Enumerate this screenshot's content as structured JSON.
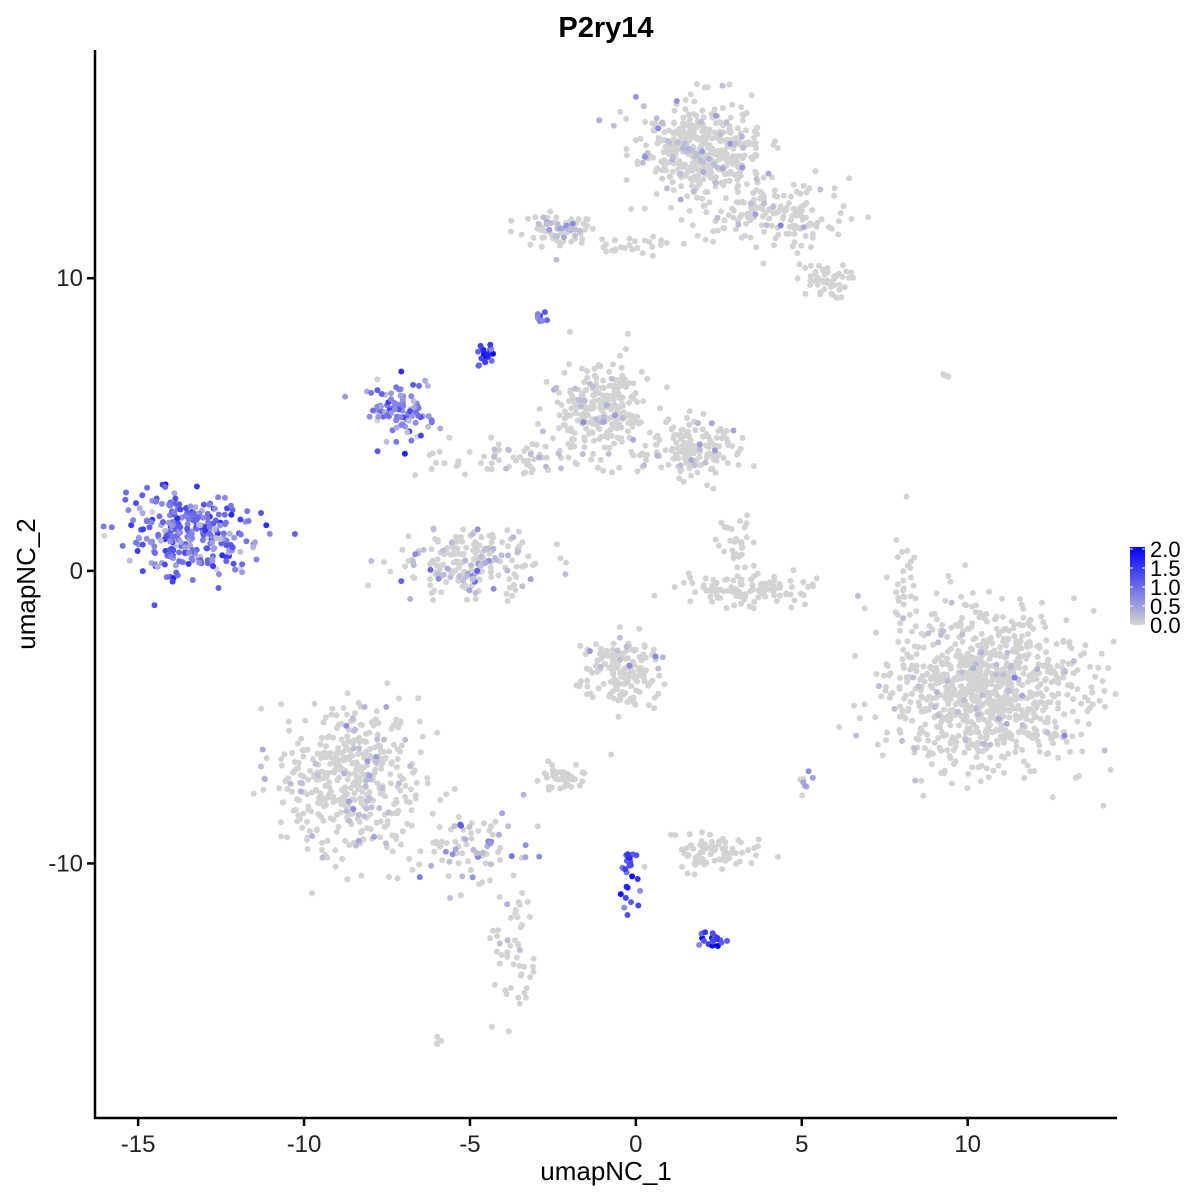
{
  "chart_data": {
    "type": "scatter",
    "title": "P2ry14",
    "xlabel": "umapNC_1",
    "ylabel": "umapNC_2",
    "xlim": [
      -16.3,
      14.5
    ],
    "ylim": [
      -18.7,
      17.8
    ],
    "x_ticks": [
      -15,
      -10,
      -5,
      0,
      5,
      10
    ],
    "x_tick_labels": [
      "-15",
      "-10",
      "-5",
      "0",
      "5",
      "10"
    ],
    "y_ticks": [
      -10,
      0,
      10
    ],
    "y_tick_labels": [
      "-10",
      "0",
      "10"
    ],
    "grid": false,
    "legend": {
      "position": "right",
      "color_low": "#D3D3D3",
      "color_high": "#0000FF",
      "range": [
        0,
        2.0
      ],
      "tick_labels": [
        "0.0",
        "0.5",
        "1.0",
        "1.5",
        "2.0"
      ],
      "tick_values": [
        0,
        0.5,
        1.0,
        1.5,
        2.0
      ]
    },
    "clusters": [
      {
        "center": [
          1.9,
          14.4
        ],
        "sd": [
          0.9,
          0.8
        ],
        "n": 420,
        "expr": 0.05
      },
      {
        "center": [
          4.2,
          12.2
        ],
        "sd": [
          1.1,
          0.6
        ],
        "n": 160,
        "expr": 0.03
      },
      {
        "center": [
          5.6,
          9.9
        ],
        "sd": [
          0.4,
          0.3
        ],
        "n": 50,
        "expr": 0.0
      },
      {
        "center": [
          -2.3,
          11.6
        ],
        "sd": [
          0.6,
          0.3
        ],
        "n": 70,
        "expr": 0.25
      },
      {
        "center": [
          0.0,
          11.1
        ],
        "sd": [
          0.7,
          0.15
        ],
        "n": 25,
        "expr": 0.0
      },
      {
        "center": [
          -2.8,
          8.7
        ],
        "sd": [
          0.15,
          0.1
        ],
        "n": 8,
        "expr": 0.8
      },
      {
        "center": [
          -4.5,
          7.4
        ],
        "sd": [
          0.15,
          0.2
        ],
        "n": 20,
        "expr": 1.3
      },
      {
        "center": [
          -7.1,
          5.5
        ],
        "sd": [
          0.5,
          0.5
        ],
        "n": 90,
        "expr": 0.8
      },
      {
        "center": [
          -1.1,
          5.5
        ],
        "sd": [
          0.7,
          0.8
        ],
        "n": 260,
        "expr": 0.02
      },
      {
        "center": [
          1.6,
          4.1
        ],
        "sd": [
          0.7,
          0.5
        ],
        "n": 160,
        "expr": 0.03
      },
      {
        "center": [
          -3.8,
          3.8
        ],
        "sd": [
          1.2,
          0.3
        ],
        "n": 60,
        "expr": 0.1
      },
      {
        "center": [
          -5.0,
          0.3
        ],
        "sd": [
          1.1,
          0.6
        ],
        "n": 210,
        "expr": 0.2
      },
      {
        "center": [
          -13.5,
          1.2
        ],
        "sd": [
          0.9,
          0.7
        ],
        "n": 260,
        "expr": 0.85
      },
      {
        "center": [
          -12.2,
          0.6
        ],
        "sd": [
          0.5,
          0.6
        ],
        "n": 25,
        "expr": 0.6
      },
      {
        "center": [
          3.4,
          -0.6
        ],
        "sd": [
          1.1,
          0.3
        ],
        "n": 110,
        "expr": 0.0
      },
      {
        "center": [
          3.1,
          0.9
        ],
        "sd": [
          0.3,
          0.5
        ],
        "n": 30,
        "expr": 0.0
      },
      {
        "center": [
          10.5,
          -4.1
        ],
        "sd": [
          1.4,
          1.3
        ],
        "n": 950,
        "expr": 0.02
      },
      {
        "center": [
          -0.4,
          -3.4
        ],
        "sd": [
          0.6,
          0.6
        ],
        "n": 160,
        "expr": 0.02
      },
      {
        "center": [
          -8.6,
          -7.1
        ],
        "sd": [
          1.1,
          1.3
        ],
        "n": 450,
        "expr": 0.02
      },
      {
        "center": [
          -5.4,
          -9.4
        ],
        "sd": [
          1.0,
          0.6
        ],
        "n": 90,
        "expr": 0.3
      },
      {
        "center": [
          -3.7,
          -13.0
        ],
        "sd": [
          0.3,
          1.5
        ],
        "n": 50,
        "expr": 0.05
      },
      {
        "center": [
          -2.3,
          -7.0
        ],
        "sd": [
          0.4,
          0.2
        ],
        "n": 40,
        "expr": 0.0
      },
      {
        "center": [
          2.3,
          -9.6
        ],
        "sd": [
          0.6,
          0.3
        ],
        "n": 80,
        "expr": 0.0
      },
      {
        "center": [
          -0.2,
          -10.6
        ],
        "sd": [
          0.15,
          0.6
        ],
        "n": 25,
        "expr": 1.2
      },
      {
        "center": [
          2.3,
          -12.6
        ],
        "sd": [
          0.2,
          0.15
        ],
        "n": 20,
        "expr": 1.5
      },
      {
        "center": [
          -6.0,
          -16.1
        ],
        "sd": [
          0.1,
          0.1
        ],
        "n": 4,
        "expr": 0.0
      },
      {
        "center": [
          9.4,
          6.7
        ],
        "sd": [
          0.1,
          0.05
        ],
        "n": 4,
        "expr": 0.0
      },
      {
        "center": [
          8.1,
          -0.3
        ],
        "sd": [
          0.15,
          1.1
        ],
        "n": 30,
        "expr": 0.0
      },
      {
        "center": [
          5.1,
          -7.4
        ],
        "sd": [
          0.1,
          0.3
        ],
        "n": 8,
        "expr": 0.4
      }
    ]
  }
}
